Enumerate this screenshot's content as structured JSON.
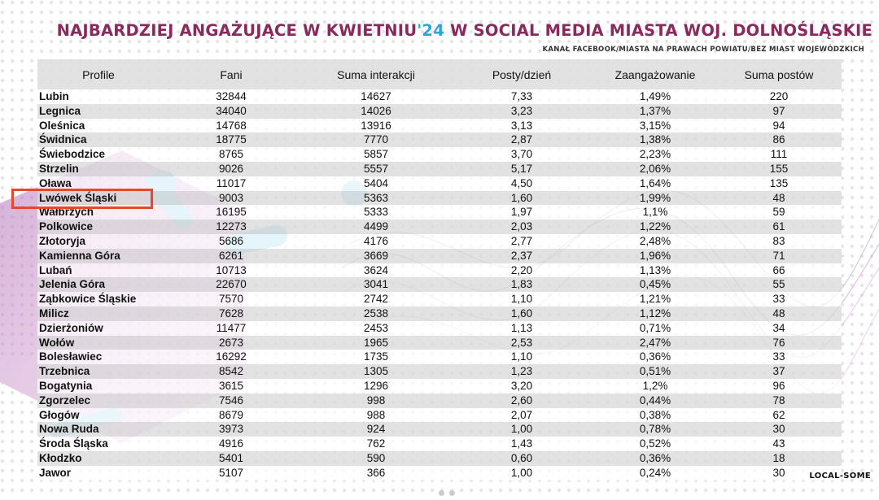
{
  "header": {
    "title_part1": "NAJBARDZIEJ ANGAŻUJĄCE W KWIETNIU",
    "title_accent": "'24",
    "title_part2": " W SOCIAL MEDIA MIASTA WOJ. DOLNOŚLĄSKIE",
    "subtitle": "KANAŁ FACEBOOK/MIASTA NA PRAWACH POWIATU/BEZ MIAST WOJEWÓDZKICH"
  },
  "brand": "LOCAL-SOME",
  "colors": {
    "title": "#8a2a5c",
    "accent": "#2ca8d8",
    "highlight_border": "#e8472b"
  },
  "highlighted_profile": "Lwówek Śląski",
  "chart_data": {
    "type": "table",
    "columns": [
      "Profile",
      "Fani",
      "Suma interakcji",
      "Posty/dzień",
      "Zaangażowanie",
      "Suma postów"
    ],
    "rows": [
      [
        "Lubin",
        "32844",
        "14627",
        "7,33",
        "1,49%",
        "220"
      ],
      [
        "Legnica",
        "34040",
        "14026",
        "3,23",
        "1,37%",
        "97"
      ],
      [
        "Oleśnica",
        "14768",
        "13916",
        "3,13",
        "3,15%",
        "94"
      ],
      [
        "Świdnica",
        "18775",
        "7770",
        "2,87",
        "1,38%",
        "86"
      ],
      [
        "Świebodzice",
        "8765",
        "5857",
        "3,70",
        "2,23%",
        "111"
      ],
      [
        "Strzelin",
        "9026",
        "5557",
        "5,17",
        "2,06%",
        "155"
      ],
      [
        "Oława",
        "11017",
        "5404",
        "4,50",
        "1,64%",
        "135"
      ],
      [
        "Lwówek Śląski",
        "9003",
        "5363",
        "1,60",
        "1,99%",
        "48"
      ],
      [
        "Wałbrzych",
        "16195",
        "5333",
        "1,97",
        "1,1%",
        "59"
      ],
      [
        "Polkowice",
        "12273",
        "4499",
        "2,03",
        "1,22%",
        "61"
      ],
      [
        "Złotoryja",
        "5686",
        "4176",
        "2,77",
        "2,48%",
        "83"
      ],
      [
        "Kamienna Góra",
        "6261",
        "3669",
        "2,37",
        "1,96%",
        "71"
      ],
      [
        "Lubań",
        "10713",
        "3624",
        "2,20",
        "1,13%",
        "66"
      ],
      [
        "Jelenia Góra",
        "22670",
        "3041",
        "1,83",
        "0,45%",
        "55"
      ],
      [
        "Ząbkowice Śląskie",
        "7570",
        "2742",
        "1,10",
        "1,21%",
        "33"
      ],
      [
        "Milicz",
        "7628",
        "2538",
        "1,60",
        "1,12%",
        "48"
      ],
      [
        "Dzierżoniów",
        "11477",
        "2453",
        "1,13",
        "0,71%",
        "34"
      ],
      [
        "Wołów",
        "2673",
        "1965",
        "2,53",
        "2,47%",
        "76"
      ],
      [
        "Bolesławiec",
        "16292",
        "1735",
        "1,10",
        "0,36%",
        "33"
      ],
      [
        "Trzebnica",
        "8542",
        "1305",
        "1,23",
        "0,51%",
        "37"
      ],
      [
        "Bogatynia",
        "3615",
        "1296",
        "3,20",
        "1,2%",
        "96"
      ],
      [
        "Zgorzelec",
        "7546",
        "998",
        "2,60",
        "0,44%",
        "78"
      ],
      [
        "Głogów",
        "8679",
        "988",
        "2,07",
        "0,38%",
        "62"
      ],
      [
        "Nowa Ruda",
        "3973",
        "924",
        "1,00",
        "0,78%",
        "30"
      ],
      [
        "Środa Śląska",
        "4916",
        "762",
        "1,43",
        "0,52%",
        "43"
      ],
      [
        "Kłodzko",
        "5401",
        "590",
        "0,60",
        "0,36%",
        "18"
      ],
      [
        "Jawor",
        "5107",
        "366",
        "1,00",
        "0,24%",
        "30"
      ]
    ]
  }
}
